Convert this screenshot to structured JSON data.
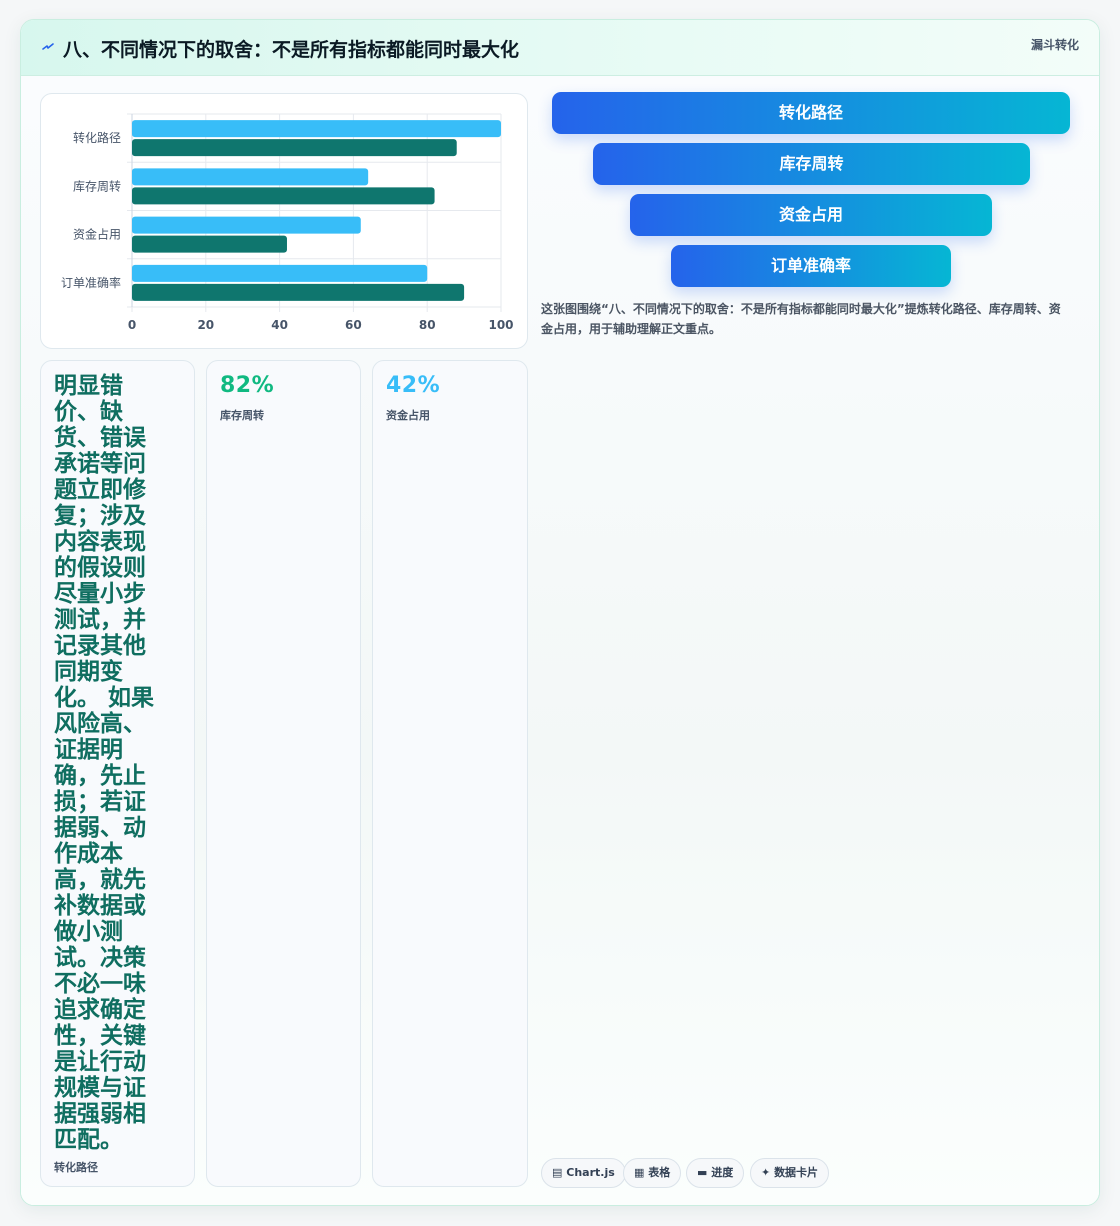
{
  "header": {
    "title": "八、不同情况下的取舍：不是所有指标都能同时最大化",
    "tag": "漏斗转化"
  },
  "chart_data": {
    "type": "bar",
    "orientation": "horizontal",
    "categories": [
      "转化路径",
      "库存周转",
      "资金占用",
      "订单准确率"
    ],
    "series": [
      {
        "values": [
          100,
          64,
          62,
          80
        ],
        "color": "#38bdf8"
      },
      {
        "values": [
          88,
          82,
          42,
          90
        ],
        "color": "#0f766e"
      }
    ],
    "xlim": [
      0,
      100
    ],
    "xticks": [
      "0",
      "20",
      "40",
      "60",
      "80",
      "100"
    ],
    "grid": true
  },
  "funnel": {
    "items": [
      {
        "label": "转化路径"
      },
      {
        "label": "库存周转"
      },
      {
        "label": "资金占用"
      },
      {
        "label": "订单准确率"
      }
    ],
    "description": "这张图围绕“八、不同情况下的取舍：不是所有指标都能同时最大化”提炼转化路径、库存周转、资金占用，用于辅助理解正文重点。"
  },
  "cards": {
    "text_card": {
      "body": "明显错价、缺货、错误承诺等问题立即修复；涉及内容表现的假设则尽量小步测试，并记录其他同期变化。 如果风险高、证据明确，先止损；若证据弱、动作成本高，就先补数据或做小测试。决策不必一味追求确定性，关键是让行动规模与证据强弱相匹配。",
      "label": "转化路径"
    },
    "stat1": {
      "value": "82%",
      "label": "库存周转",
      "color": "#10b981"
    },
    "stat2": {
      "value": "42%",
      "label": "资金占用",
      "color": "#38bdf8"
    }
  },
  "chips": [
    {
      "icon": "▤",
      "label": "Chart.js"
    },
    {
      "icon": "▦",
      "label": "表格"
    },
    {
      "icon": "▬",
      "label": "进度"
    },
    {
      "icon": "✦",
      "label": "数据卡片"
    }
  ]
}
